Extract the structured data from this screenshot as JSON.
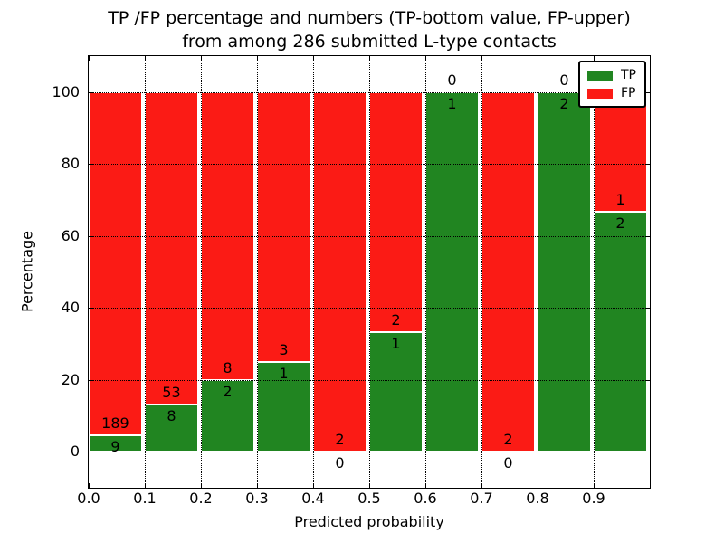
{
  "chart_data": {
    "type": "bar",
    "stacked": true,
    "title_line1": "TP /FP percentage and numbers (TP-bottom value, FP-upper)",
    "title_line2": "from among 286 submitted L-type contacts",
    "xlabel": "Predicted probability",
    "ylabel": "Percentage",
    "x_ticks": [
      "0.0",
      "0.1",
      "0.2",
      "0.3",
      "0.4",
      "0.5",
      "0.6",
      "0.7",
      "0.8",
      "0.9"
    ],
    "y_ticks": [
      "0",
      "20",
      "40",
      "60",
      "80",
      "100"
    ],
    "xlim": [
      0.0,
      1.0
    ],
    "ylim": [
      -10,
      110
    ],
    "grid": true,
    "bar_width_frac": 0.095,
    "bin_width": 0.1,
    "total_contacts": 286,
    "series": [
      {
        "name": "TP",
        "color": "#218521",
        "values": [
          9,
          8,
          2,
          1,
          0,
          1,
          1,
          0,
          2,
          2
        ]
      },
      {
        "name": "FP",
        "color": "#fb1b15",
        "values": [
          189,
          53,
          8,
          3,
          2,
          2,
          0,
          2,
          0,
          1
        ]
      }
    ],
    "bin_starts": [
      0.0,
      0.1,
      0.2,
      0.3,
      0.4,
      0.5,
      0.6,
      0.7,
      0.8,
      0.9
    ],
    "bar_tp_percent": [
      4.5,
      13.1,
      20.0,
      25.0,
      0.0,
      33.3,
      100.0,
      0.0,
      100.0,
      66.7
    ],
    "legend": {
      "position": "upper right",
      "items": [
        {
          "label": "TP",
          "color": "#218521"
        },
        {
          "label": "FP",
          "color": "#fb1b15"
        }
      ]
    }
  }
}
